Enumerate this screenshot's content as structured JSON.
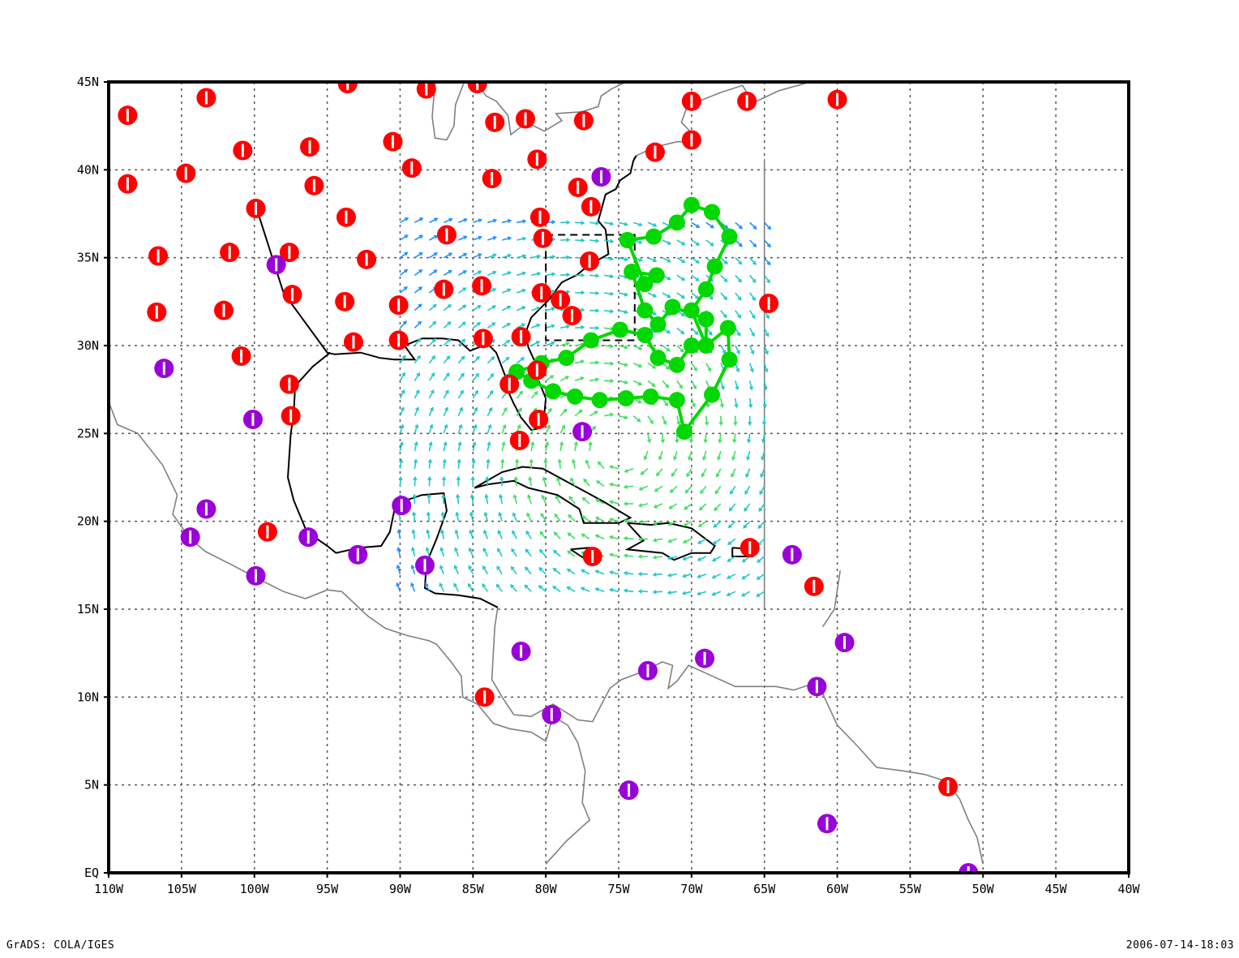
{
  "map": {
    "lon_range": [
      -110,
      -40
    ],
    "lat_range": [
      0,
      45
    ],
    "grid": true,
    "x_ticks": [
      "110W",
      "105W",
      "100W",
      "95W",
      "90W",
      "85W",
      "80W",
      "75W",
      "70W",
      "65W",
      "60W",
      "55W",
      "50W",
      "45W",
      "40W"
    ],
    "y_ticks": [
      "EQ",
      "5N",
      "10N",
      "15N",
      "20N",
      "25N",
      "30N",
      "35N",
      "40N",
      "45N"
    ]
  },
  "colors": {
    "station_red": "#ff0000",
    "station_purple": "#9a00d8",
    "track_green": "#00d800",
    "vector_blue": "#1e90ff",
    "vector_cyan": "#20c8c8",
    "vector_green": "#40e060",
    "coast": "#808080",
    "coast_dark": "#000000"
  },
  "stations_red": [
    [
      -108.7,
      43.1
    ],
    [
      -103.3,
      44.1
    ],
    [
      -93.6,
      44.9
    ],
    [
      -88.2,
      44.6
    ],
    [
      -84.7,
      44.9
    ],
    [
      -83.5,
      42.7
    ],
    [
      -81.4,
      42.9
    ],
    [
      -77.4,
      42.8
    ],
    [
      -72.5,
      41.0
    ],
    [
      -70.0,
      43.9
    ],
    [
      -70.0,
      41.7
    ],
    [
      -66.2,
      43.9
    ],
    [
      -60.0,
      44.0
    ],
    [
      -108.7,
      39.2
    ],
    [
      -104.7,
      39.8
    ],
    [
      -100.8,
      41.1
    ],
    [
      -96.2,
      41.3
    ],
    [
      -90.5,
      41.6
    ],
    [
      -89.2,
      40.1
    ],
    [
      -83.7,
      39.5
    ],
    [
      -80.6,
      40.6
    ],
    [
      -77.8,
      39.0
    ],
    [
      -76.9,
      37.9
    ],
    [
      -106.6,
      35.1
    ],
    [
      -101.7,
      35.3
    ],
    [
      -97.6,
      35.3
    ],
    [
      -95.9,
      39.1
    ],
    [
      -99.9,
      37.8
    ],
    [
      -93.7,
      37.3
    ],
    [
      -92.3,
      34.9
    ],
    [
      -86.8,
      36.3
    ],
    [
      -80.4,
      37.3
    ],
    [
      -80.2,
      36.1
    ],
    [
      -77.0,
      34.8
    ],
    [
      -106.7,
      31.9
    ],
    [
      -102.1,
      32.0
    ],
    [
      -97.4,
      32.9
    ],
    [
      -93.8,
      32.5
    ],
    [
      -90.1,
      32.3
    ],
    [
      -87.0,
      33.2
    ],
    [
      -84.4,
      33.4
    ],
    [
      -80.3,
      33.0
    ],
    [
      -79.0,
      32.6
    ],
    [
      -78.2,
      31.7
    ],
    [
      -64.7,
      32.4
    ],
    [
      -100.9,
      29.4
    ],
    [
      -97.6,
      27.8
    ],
    [
      -97.5,
      26.0
    ],
    [
      -93.2,
      30.2
    ],
    [
      -90.1,
      30.3
    ],
    [
      -84.3,
      30.4
    ],
    [
      -81.7,
      30.5
    ],
    [
      -80.6,
      28.6
    ],
    [
      -82.5,
      27.8
    ],
    [
      -80.5,
      25.8
    ],
    [
      -81.8,
      24.6
    ],
    [
      -99.1,
      19.4
    ],
    [
      -76.8,
      18.0
    ],
    [
      -66.0,
      18.5
    ],
    [
      -61.6,
      16.3
    ],
    [
      -84.2,
      10.0
    ],
    [
      -52.4,
      4.9
    ]
  ],
  "stations_purple": [
    [
      -76.2,
      39.6
    ],
    [
      -98.5,
      34.6
    ],
    [
      -106.2,
      28.7
    ],
    [
      -100.1,
      25.8
    ],
    [
      -77.5,
      25.1
    ],
    [
      -103.3,
      20.7
    ],
    [
      -104.4,
      19.1
    ],
    [
      -96.3,
      19.1
    ],
    [
      -92.9,
      18.1
    ],
    [
      -88.3,
      17.5
    ],
    [
      -89.9,
      20.9
    ],
    [
      -99.9,
      16.9
    ],
    [
      -63.1,
      18.1
    ],
    [
      -59.5,
      13.1
    ],
    [
      -81.7,
      12.6
    ],
    [
      -73.0,
      11.5
    ],
    [
      -69.1,
      12.2
    ],
    [
      -61.4,
      10.6
    ],
    [
      -79.6,
      9.0
    ],
    [
      -74.3,
      4.7
    ],
    [
      -60.7,
      2.8
    ],
    [
      -51.0,
      0.0
    ]
  ],
  "track": [
    [
      -74.4,
      36.0
    ],
    [
      -72.6,
      36.2
    ],
    [
      -71.0,
      37.0
    ],
    [
      -70.0,
      38.0
    ],
    [
      -68.6,
      37.6
    ],
    [
      -67.4,
      36.2
    ],
    [
      -68.4,
      34.5
    ],
    [
      -69.0,
      33.2
    ],
    [
      -70.0,
      32.0
    ],
    [
      -69.0,
      30.0
    ],
    [
      -67.5,
      31.0
    ],
    [
      -67.4,
      29.2
    ],
    [
      -68.6,
      27.2
    ],
    [
      -70.5,
      25.1
    ],
    [
      -71.0,
      26.9
    ],
    [
      -72.8,
      27.1
    ],
    [
      -74.5,
      27.0
    ],
    [
      -76.3,
      26.9
    ],
    [
      -78.0,
      27.1
    ],
    [
      -79.5,
      27.4
    ],
    [
      -81.0,
      28.0
    ],
    [
      -82.0,
      28.5
    ],
    [
      -80.3,
      29.0
    ],
    [
      -78.6,
      29.3
    ],
    [
      -76.9,
      30.3
    ],
    [
      -74.9,
      30.9
    ],
    [
      -73.2,
      30.6
    ],
    [
      -72.3,
      29.3
    ],
    [
      -71.0,
      28.9
    ],
    [
      -70.0,
      30.0
    ],
    [
      -69.0,
      30.0
    ],
    [
      -69.0,
      31.5
    ],
    [
      -71.3,
      32.2
    ],
    [
      -72.3,
      31.2
    ],
    [
      -73.2,
      32.0
    ],
    [
      -74.1,
      34.2
    ],
    [
      -72.4,
      34.0
    ],
    [
      -73.2,
      33.5
    ],
    [
      -74.4,
      36.0
    ]
  ],
  "vortex": {
    "center": [
      -75.0,
      24.2
    ],
    "extent": [
      -90.0,
      16.0,
      -65.0,
      37.6
    ]
  },
  "boxes": [
    [
      -80.0,
      30.3,
      -73.9,
      36.3
    ]
  ],
  "coasts_dark": [
    [
      [
        -100.0,
        38.2
      ],
      [
        -98.0,
        33.0
      ],
      [
        -95.0,
        29.6
      ],
      [
        -94.5,
        29.5
      ],
      [
        -92.7,
        29.6
      ],
      [
        -91.4,
        29.3
      ],
      [
        -90.4,
        29.2
      ],
      [
        -89.0,
        29.2
      ],
      [
        -89.7,
        30.0
      ],
      [
        -88.5,
        30.4
      ],
      [
        -87.1,
        30.4
      ],
      [
        -86.0,
        30.3
      ],
      [
        -85.2,
        29.7
      ],
      [
        -84.0,
        30.1
      ],
      [
        -83.4,
        29.6
      ],
      [
        -82.8,
        28.3
      ],
      [
        -82.7,
        27.6
      ],
      [
        -82.2,
        26.7
      ],
      [
        -81.7,
        25.9
      ],
      [
        -81.0,
        25.2
      ],
      [
        -80.4,
        25.3
      ],
      [
        -80.1,
        26.1
      ],
      [
        -80.0,
        27.0
      ],
      [
        -80.5,
        28.0
      ],
      [
        -80.6,
        28.8
      ],
      [
        -81.2,
        29.9
      ],
      [
        -81.4,
        30.7
      ],
      [
        -81.0,
        31.6
      ],
      [
        -79.8,
        32.6
      ],
      [
        -78.9,
        33.6
      ],
      [
        -77.9,
        34.0
      ],
      [
        -77.0,
        34.6
      ],
      [
        -75.7,
        35.2
      ],
      [
        -75.9,
        36.6
      ],
      [
        -76.4,
        37.1
      ],
      [
        -76.1,
        38.0
      ],
      [
        -75.9,
        38.6
      ],
      [
        -75.2,
        38.9
      ],
      [
        -74.9,
        39.4
      ],
      [
        -74.2,
        39.8
      ],
      [
        -74.0,
        40.5
      ],
      [
        -73.8,
        40.8
      ]
    ],
    [
      [
        -94.8,
        29.6
      ],
      [
        -96.0,
        28.8
      ],
      [
        -97.2,
        27.7
      ],
      [
        -97.3,
        26.1
      ],
      [
        -97.5,
        25.0
      ],
      [
        -97.7,
        22.5
      ],
      [
        -97.3,
        21.2
      ],
      [
        -96.4,
        19.4
      ],
      [
        -95.0,
        18.6
      ],
      [
        -94.4,
        18.2
      ],
      [
        -92.8,
        18.5
      ],
      [
        -91.3,
        18.6
      ],
      [
        -90.7,
        19.4
      ],
      [
        -90.3,
        21.0
      ],
      [
        -88.5,
        21.5
      ],
      [
        -87.0,
        21.6
      ],
      [
        -86.8,
        20.6
      ],
      [
        -87.5,
        19.0
      ],
      [
        -88.2,
        17.6
      ],
      [
        -88.3,
        16.2
      ],
      [
        -87.6,
        15.9
      ],
      [
        -86.0,
        15.8
      ],
      [
        -84.5,
        15.6
      ],
      [
        -83.3,
        15.1
      ]
    ],
    [
      [
        -84.9,
        21.9
      ],
      [
        -83.0,
        22.8
      ],
      [
        -81.6,
        23.1
      ],
      [
        -80.2,
        23.0
      ],
      [
        -78.0,
        22.0
      ],
      [
        -76.0,
        21.1
      ],
      [
        -74.2,
        20.2
      ],
      [
        -75.0,
        19.9
      ],
      [
        -77.4,
        19.9
      ],
      [
        -77.7,
        20.7
      ],
      [
        -79.2,
        21.5
      ],
      [
        -81.2,
        21.9
      ],
      [
        -82.2,
        22.3
      ],
      [
        -84.0,
        22.1
      ],
      [
        -84.9,
        21.9
      ]
    ],
    [
      [
        -74.4,
        19.9
      ],
      [
        -72.8,
        19.8
      ],
      [
        -71.6,
        19.9
      ],
      [
        -70.0,
        19.6
      ],
      [
        -68.4,
        18.6
      ],
      [
        -68.7,
        18.2
      ],
      [
        -70.0,
        18.2
      ],
      [
        -71.2,
        17.8
      ],
      [
        -72.0,
        18.2
      ],
      [
        -74.4,
        18.4
      ],
      [
        -73.3,
        18.9
      ],
      [
        -74.4,
        19.9
      ]
    ],
    [
      [
        -78.3,
        18.4
      ],
      [
        -77.0,
        18.5
      ],
      [
        -76.3,
        18.0
      ],
      [
        -77.2,
        17.8
      ],
      [
        -78.3,
        18.4
      ]
    ],
    [
      [
        -67.2,
        18.5
      ],
      [
        -65.6,
        18.4
      ],
      [
        -65.8,
        18.0
      ],
      [
        -67.2,
        18.0
      ],
      [
        -67.2,
        18.5
      ]
    ]
  ],
  "coasts_gray": [
    [
      [
        -110.0,
        26.8
      ],
      [
        -109.4,
        25.5
      ],
      [
        -108.0,
        25.0
      ],
      [
        -106.3,
        23.2
      ],
      [
        -105.3,
        21.5
      ],
      [
        -105.6,
        20.4
      ],
      [
        -104.5,
        19.1
      ],
      [
        -103.4,
        18.3
      ],
      [
        -101.5,
        17.5
      ],
      [
        -99.9,
        16.8
      ],
      [
        -98.0,
        16.0
      ],
      [
        -96.5,
        15.6
      ],
      [
        -95.0,
        16.1
      ],
      [
        -94.0,
        16.0
      ],
      [
        -92.2,
        14.6
      ],
      [
        -91.0,
        13.9
      ],
      [
        -89.5,
        13.5
      ],
      [
        -88.0,
        13.2
      ],
      [
        -87.5,
        13.0
      ],
      [
        -86.5,
        12.0
      ],
      [
        -85.8,
        11.2
      ],
      [
        -85.7,
        10.0
      ],
      [
        -84.7,
        9.6
      ],
      [
        -83.6,
        8.5
      ],
      [
        -82.5,
        8.2
      ],
      [
        -81.0,
        8.0
      ],
      [
        -80.0,
        7.5
      ],
      [
        -79.5,
        8.9
      ],
      [
        -78.5,
        8.4
      ],
      [
        -77.8,
        7.4
      ],
      [
        -77.3,
        5.8
      ],
      [
        -77.5,
        4.0
      ],
      [
        -77.0,
        3.0
      ],
      [
        -78.6,
        1.8
      ],
      [
        -80.0,
        0.5
      ]
    ],
    [
      [
        -83.3,
        15.1
      ],
      [
        -83.5,
        14.0
      ],
      [
        -83.6,
        12.5
      ],
      [
        -83.7,
        11.0
      ],
      [
        -83.0,
        10.0
      ],
      [
        -82.2,
        9.0
      ],
      [
        -81.0,
        8.9
      ],
      [
        -79.5,
        9.6
      ],
      [
        -77.8,
        8.7
      ],
      [
        -76.8,
        8.6
      ],
      [
        -75.6,
        10.5
      ],
      [
        -74.8,
        11.0
      ],
      [
        -73.5,
        11.4
      ],
      [
        -72.0,
        12.0
      ],
      [
        -71.3,
        11.8
      ],
      [
        -71.6,
        10.5
      ],
      [
        -71.0,
        10.9
      ],
      [
        -70.2,
        11.8
      ],
      [
        -68.6,
        11.2
      ],
      [
        -67.0,
        10.6
      ],
      [
        -64.2,
        10.6
      ],
      [
        -63.0,
        10.4
      ],
      [
        -61.9,
        10.7
      ],
      [
        -61.0,
        10.2
      ],
      [
        -60.0,
        8.4
      ],
      [
        -58.6,
        7.2
      ],
      [
        -57.3,
        6.0
      ],
      [
        -55.5,
        5.8
      ],
      [
        -54.0,
        5.6
      ],
      [
        -52.5,
        5.2
      ],
      [
        -51.6,
        4.2
      ],
      [
        -51.0,
        3.0
      ],
      [
        -50.4,
        2.0
      ],
      [
        -50.0,
        0.5
      ]
    ],
    [
      [
        -60.0,
        45.0
      ],
      [
        -61.0,
        45.2
      ],
      [
        -64.0,
        44.5
      ],
      [
        -65.8,
        43.8
      ],
      [
        -66.5,
        44.8
      ],
      [
        -68.0,
        44.4
      ],
      [
        -69.5,
        43.9
      ],
      [
        -70.3,
        43.6
      ],
      [
        -70.7,
        42.7
      ],
      [
        -70.0,
        42.1
      ],
      [
        -69.9,
        41.6
      ],
      [
        -71.0,
        41.6
      ],
      [
        -72.5,
        41.3
      ],
      [
        -73.8,
        40.8
      ],
      [
        -74.0,
        40.6
      ]
    ],
    [
      [
        -84.8,
        45.0
      ],
      [
        -84.1,
        44.2
      ],
      [
        -83.4,
        43.9
      ],
      [
        -82.6,
        43.1
      ],
      [
        -82.4,
        42.0
      ],
      [
        -81.3,
        42.7
      ],
      [
        -80.1,
        42.2
      ],
      [
        -78.9,
        42.8
      ],
      [
        -79.3,
        43.2
      ],
      [
        -77.5,
        43.3
      ],
      [
        -76.4,
        43.6
      ],
      [
        -76.2,
        44.2
      ],
      [
        -75.5,
        44.6
      ],
      [
        -74.5,
        45.0
      ]
    ],
    [
      [
        -87.6,
        45.0
      ],
      [
        -87.8,
        43.0
      ],
      [
        -87.6,
        41.8
      ],
      [
        -86.8,
        41.7
      ],
      [
        -86.3,
        42.5
      ],
      [
        -86.2,
        43.7
      ],
      [
        -85.6,
        45.0
      ]
    ],
    [
      [
        -65.0,
        40.6
      ],
      [
        -65.0,
        15.0
      ]
    ],
    [
      [
        -59.8,
        17.2
      ],
      [
        -60.2,
        15.0
      ],
      [
        -61.0,
        14.0
      ]
    ]
  ],
  "footer": {
    "left": "GrADS: COLA/IGES",
    "right": "2006-07-14-18:03"
  }
}
